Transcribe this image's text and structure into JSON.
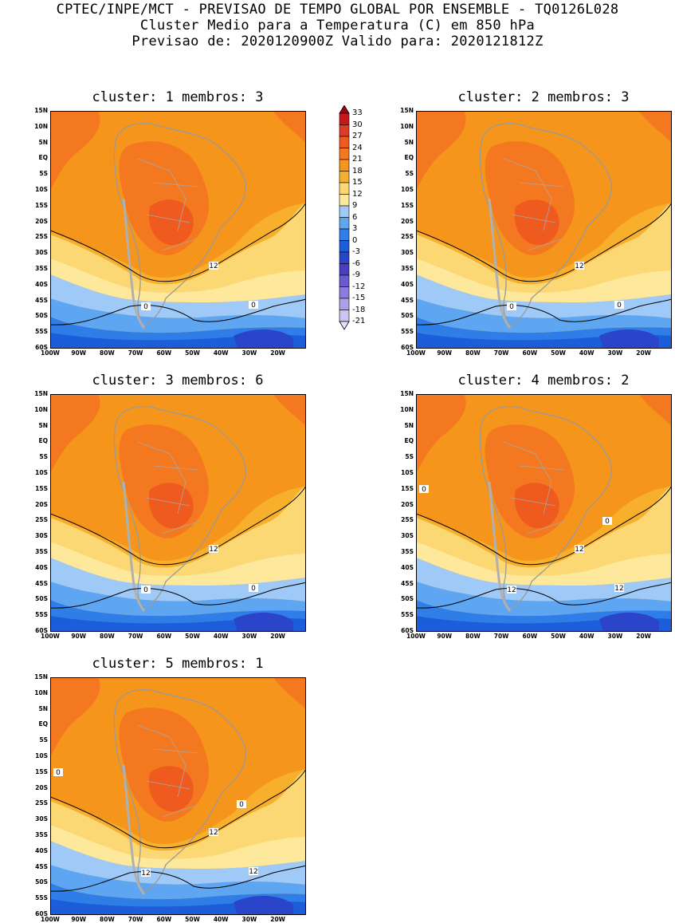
{
  "header": {
    "line1": "CPTEC/INPE/MCT - PREVISAO DE TEMPO GLOBAL POR ENSEMBLE - TQ0126L028",
    "line2": "Cluster Medio para a Temperatura (C) em 850 hPa",
    "line3": "Previsao de: 2020120900Z   Valido para: 2020121812Z"
  },
  "panels": [
    {
      "title": "cluster: 1  membros: 3",
      "labels": [
        "12",
        "0",
        "0"
      ]
    },
    {
      "title": "cluster: 2  membros: 3",
      "labels": [
        "12",
        "0",
        "0"
      ]
    },
    {
      "title": "cluster: 3  membros: 6",
      "labels": [
        "12",
        "0",
        "0"
      ]
    },
    {
      "title": "cluster: 4  membros: 2",
      "labels": [
        "12",
        "12",
        "12",
        "0",
        "0"
      ]
    },
    {
      "title": "cluster: 5  membros: 1",
      "labels": [
        "12",
        "12",
        "12",
        "0",
        "0"
      ]
    }
  ],
  "axes": {
    "lat_labels": [
      "15N",
      "10N",
      "5N",
      "EQ",
      "5S",
      "10S",
      "15S",
      "20S",
      "25S",
      "30S",
      "35S",
      "40S",
      "45S",
      "50S",
      "55S",
      "60S"
    ],
    "lon_labels": [
      "100W",
      "90W",
      "80W",
      "70W",
      "60W",
      "50W",
      "40W",
      "30W",
      "20W"
    ]
  },
  "colorbar": {
    "labels": [
      "33",
      "30",
      "27",
      "24",
      "21",
      "18",
      "15",
      "12",
      "9",
      "6",
      "3",
      "0",
      "-3",
      "-6",
      "-9",
      "-12",
      "-15",
      "-18",
      "-21"
    ],
    "colors": [
      "#a00016",
      "#c41a1a",
      "#e13a22",
      "#ef5a1e",
      "#f4781f",
      "#f6951c",
      "#f8b02c",
      "#fbd873",
      "#fde89c",
      "#9fc9f7",
      "#5ea6f1",
      "#2f7de7",
      "#1c5ed9",
      "#2a45c9",
      "#4a3fc3",
      "#6d5ad3",
      "#8d7ddf",
      "#ad9fe8",
      "#cdc2f2",
      "#e8e2f8"
    ],
    "palette_keys": [
      "above-33",
      "30-33",
      "27-30",
      "24-27",
      "21-24",
      "18-21",
      "15-18",
      "12-15",
      "9-12",
      "6-9",
      "3-6",
      "0-3",
      "-3-0",
      "-6--3",
      "-9--6",
      "-12--9",
      "-15--12",
      "-18--15",
      "-21--18",
      "below--21"
    ]
  },
  "field_colors": {
    "c24": "#ef5a1e",
    "c21": "#f4781f",
    "c18": "#f6951c",
    "c15": "#f8b02c",
    "c12": "#fbd873",
    "c9": "#fde89c",
    "c6": "#9fc9f7",
    "c3": "#5ea6f1",
    "c0": "#2f7de7",
    "cm3": "#1c5ed9",
    "cm6": "#2a45c9",
    "cm9": "#4a3fc3"
  }
}
